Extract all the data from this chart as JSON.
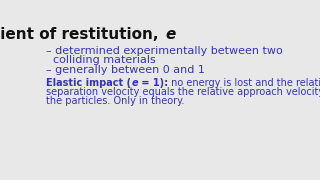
{
  "background_color": "#e8e8e8",
  "title_main": "Coefficient of restitution, ",
  "title_italic": "e",
  "title_fontsize": 11,
  "title_color": "#111111",
  "bullet_color": "#3333bb",
  "bullet_fontsize": 8.0,
  "bullet1_line1": "– determined experimentally between two",
  "bullet1_line2": "  colliding materials",
  "bullet2": "– generally between 0 and 1",
  "elastic_color": "#3333bb",
  "elastic_fontsize": 7.0,
  "elastic_bold_pre": "Elastic impact (",
  "elastic_italic": "e",
  "elastic_bold_post": " = 1):",
  "elastic_rest1": " no energy is lost and the relative",
  "elastic_rest2": "separation velocity equals the relative approach velocity of",
  "elastic_rest3": "the particles. Only in theory."
}
